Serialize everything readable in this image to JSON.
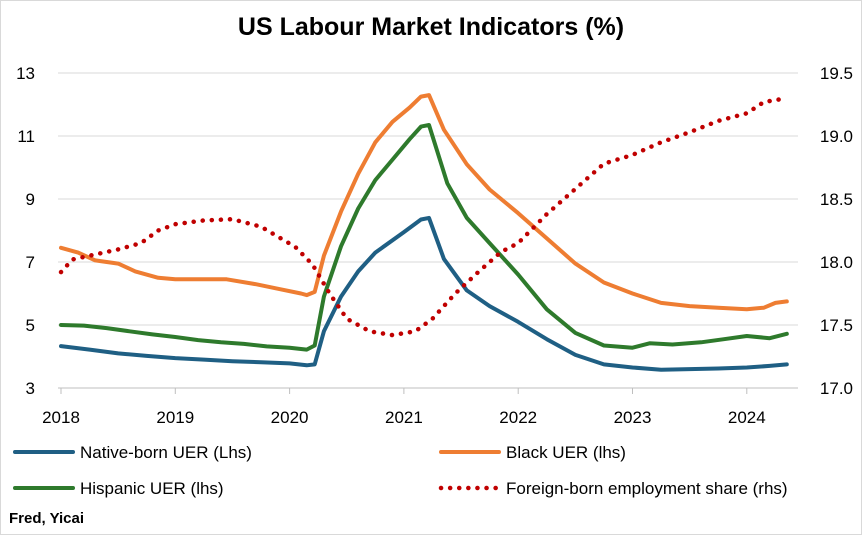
{
  "chart_data": {
    "type": "line",
    "title": "US Labour Market Indicators (%)",
    "source": "Fred, Yicai",
    "x_ticks": [
      "2018",
      "2019",
      "2020",
      "2021",
      "2022",
      "2023",
      "2024"
    ],
    "xlim": [
      2018,
      2024.4
    ],
    "y_left": {
      "ylim": [
        3,
        13
      ],
      "ticks": [
        "3",
        "5",
        "7",
        "9",
        "11",
        "13"
      ]
    },
    "y_right": {
      "ylim": [
        17.0,
        19.5
      ],
      "ticks": [
        "17.0",
        "17.5",
        "18.0",
        "18.5",
        "19.0",
        "19.5"
      ]
    },
    "grid": "horizontal",
    "legend_position": "bottom",
    "series": [
      {
        "name": "Native-born UER (Lhs)",
        "axis": "left",
        "color": "#1f5f84",
        "style": "solid",
        "points": [
          [
            2018.0,
            4.33
          ],
          [
            2018.25,
            4.22
          ],
          [
            2018.5,
            4.1
          ],
          [
            2018.75,
            4.02
          ],
          [
            2019.0,
            3.95
          ],
          [
            2019.25,
            3.9
          ],
          [
            2019.5,
            3.85
          ],
          [
            2019.75,
            3.82
          ],
          [
            2020.0,
            3.78
          ],
          [
            2020.15,
            3.72
          ],
          [
            2020.22,
            3.75
          ],
          [
            2020.3,
            4.8
          ],
          [
            2020.45,
            5.9
          ],
          [
            2020.6,
            6.7
          ],
          [
            2020.75,
            7.3
          ],
          [
            2021.0,
            7.95
          ],
          [
            2021.15,
            8.35
          ],
          [
            2021.22,
            8.4
          ],
          [
            2021.35,
            7.1
          ],
          [
            2021.55,
            6.1
          ],
          [
            2021.75,
            5.6
          ],
          [
            2022.0,
            5.1
          ],
          [
            2022.25,
            4.55
          ],
          [
            2022.5,
            4.05
          ],
          [
            2022.75,
            3.75
          ],
          [
            2023.0,
            3.65
          ],
          [
            2023.25,
            3.58
          ],
          [
            2023.5,
            3.6
          ],
          [
            2023.75,
            3.62
          ],
          [
            2024.0,
            3.65
          ],
          [
            2024.2,
            3.7
          ],
          [
            2024.35,
            3.75
          ]
        ]
      },
      {
        "name": "Black UER (lhs)",
        "axis": "left",
        "color": "#ee7d32",
        "style": "solid",
        "points": [
          [
            2018.0,
            7.45
          ],
          [
            2018.15,
            7.3
          ],
          [
            2018.3,
            7.05
          ],
          [
            2018.5,
            6.95
          ],
          [
            2018.65,
            6.7
          ],
          [
            2018.85,
            6.5
          ],
          [
            2019.0,
            6.45
          ],
          [
            2019.25,
            6.45
          ],
          [
            2019.45,
            6.45
          ],
          [
            2019.7,
            6.3
          ],
          [
            2019.9,
            6.15
          ],
          [
            2020.1,
            6.0
          ],
          [
            2020.15,
            5.95
          ],
          [
            2020.22,
            6.05
          ],
          [
            2020.3,
            7.2
          ],
          [
            2020.45,
            8.6
          ],
          [
            2020.6,
            9.8
          ],
          [
            2020.75,
            10.8
          ],
          [
            2020.9,
            11.45
          ],
          [
            2021.05,
            11.9
          ],
          [
            2021.15,
            12.25
          ],
          [
            2021.22,
            12.3
          ],
          [
            2021.35,
            11.2
          ],
          [
            2021.55,
            10.1
          ],
          [
            2021.75,
            9.3
          ],
          [
            2022.0,
            8.55
          ],
          [
            2022.25,
            7.75
          ],
          [
            2022.5,
            6.95
          ],
          [
            2022.75,
            6.35
          ],
          [
            2023.0,
            6.0
          ],
          [
            2023.25,
            5.7
          ],
          [
            2023.5,
            5.6
          ],
          [
            2023.75,
            5.55
          ],
          [
            2024.0,
            5.5
          ],
          [
            2024.15,
            5.55
          ],
          [
            2024.25,
            5.7
          ],
          [
            2024.35,
            5.75
          ]
        ]
      },
      {
        "name": "Hispanic UER (lhs)",
        "axis": "left",
        "color": "#2e7a2c",
        "style": "solid",
        "points": [
          [
            2018.0,
            5.0
          ],
          [
            2018.2,
            4.98
          ],
          [
            2018.4,
            4.9
          ],
          [
            2018.6,
            4.8
          ],
          [
            2018.8,
            4.7
          ],
          [
            2019.0,
            4.62
          ],
          [
            2019.2,
            4.52
          ],
          [
            2019.4,
            4.45
          ],
          [
            2019.6,
            4.4
          ],
          [
            2019.8,
            4.32
          ],
          [
            2020.0,
            4.28
          ],
          [
            2020.15,
            4.22
          ],
          [
            2020.22,
            4.35
          ],
          [
            2020.3,
            5.9
          ],
          [
            2020.45,
            7.5
          ],
          [
            2020.6,
            8.7
          ],
          [
            2020.75,
            9.6
          ],
          [
            2020.9,
            10.25
          ],
          [
            2021.05,
            10.9
          ],
          [
            2021.15,
            11.3
          ],
          [
            2021.22,
            11.35
          ],
          [
            2021.38,
            9.5
          ],
          [
            2021.55,
            8.4
          ],
          [
            2021.75,
            7.6
          ],
          [
            2022.0,
            6.6
          ],
          [
            2022.25,
            5.5
          ],
          [
            2022.5,
            4.75
          ],
          [
            2022.75,
            4.35
          ],
          [
            2023.0,
            4.28
          ],
          [
            2023.15,
            4.42
          ],
          [
            2023.35,
            4.38
          ],
          [
            2023.6,
            4.45
          ],
          [
            2023.8,
            4.55
          ],
          [
            2024.0,
            4.65
          ],
          [
            2024.2,
            4.58
          ],
          [
            2024.35,
            4.72
          ]
        ]
      },
      {
        "name": "Foreign-born employment share (rhs)",
        "axis": "right",
        "color": "#c00000",
        "style": "dotted",
        "points": [
          [
            2018.0,
            17.92
          ],
          [
            2018.1,
            18.02
          ],
          [
            2018.25,
            18.05
          ],
          [
            2018.5,
            18.1
          ],
          [
            2018.7,
            18.15
          ],
          [
            2018.85,
            18.25
          ],
          [
            2019.0,
            18.3
          ],
          [
            2019.25,
            18.33
          ],
          [
            2019.5,
            18.34
          ],
          [
            2019.75,
            18.28
          ],
          [
            2019.9,
            18.2
          ],
          [
            2020.05,
            18.12
          ],
          [
            2020.2,
            17.98
          ],
          [
            2020.35,
            17.75
          ],
          [
            2020.5,
            17.55
          ],
          [
            2020.7,
            17.45
          ],
          [
            2020.9,
            17.42
          ],
          [
            2021.1,
            17.45
          ],
          [
            2021.25,
            17.55
          ],
          [
            2021.45,
            17.75
          ],
          [
            2021.65,
            17.92
          ],
          [
            2021.85,
            18.08
          ],
          [
            2022.0,
            18.15
          ],
          [
            2022.25,
            18.38
          ],
          [
            2022.5,
            18.58
          ],
          [
            2022.75,
            18.78
          ],
          [
            2023.0,
            18.85
          ],
          [
            2023.25,
            18.95
          ],
          [
            2023.5,
            19.03
          ],
          [
            2023.75,
            19.12
          ],
          [
            2024.0,
            19.18
          ],
          [
            2024.15,
            19.27
          ],
          [
            2024.35,
            19.3
          ]
        ]
      }
    ]
  }
}
